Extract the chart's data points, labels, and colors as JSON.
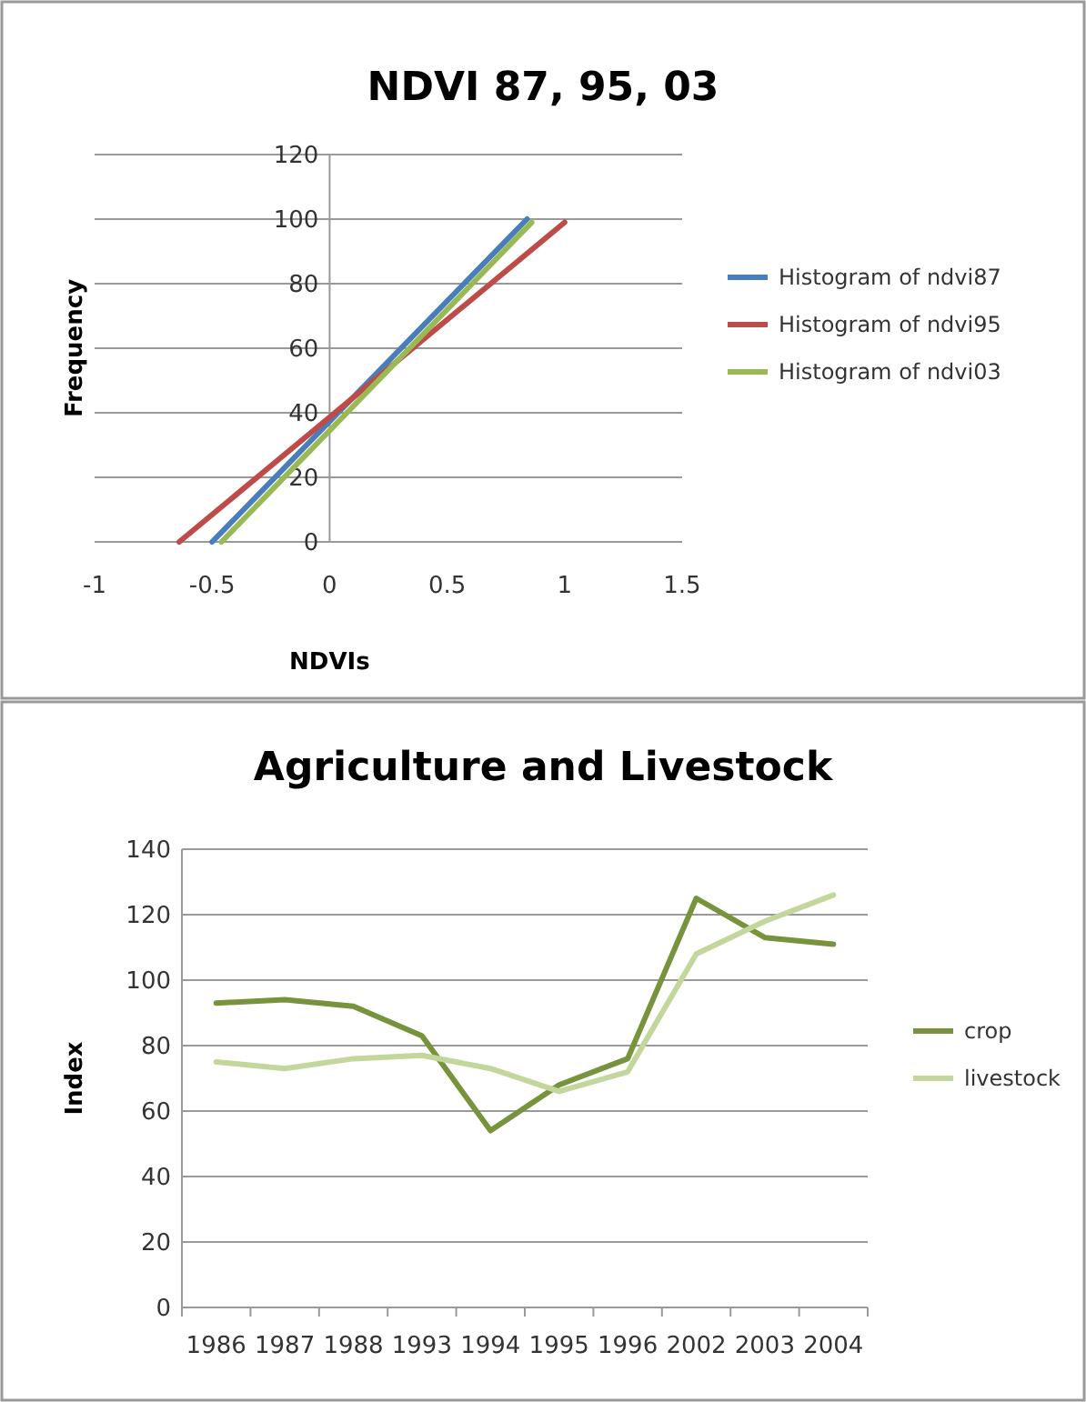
{
  "chart_data": [
    {
      "type": "line",
      "title": "NDVI 87, 95, 03",
      "xlabel": "NDVIs",
      "ylabel": "Frequency",
      "xlim": [
        -1,
        1.5
      ],
      "xticks": [
        -1,
        -0.5,
        0,
        0.5,
        1,
        1.5
      ],
      "ylim": [
        0,
        120
      ],
      "yticks": [
        0,
        20,
        40,
        60,
        80,
        100,
        120
      ],
      "grid": "y",
      "legend": "right",
      "marker": "none",
      "series": [
        {
          "name": "Histogram of ndvi87",
          "color": "#4a7ebb",
          "x": [
            -0.5,
            0.84
          ],
          "values": [
            0,
            100
          ]
        },
        {
          "name": "Histogram of ndvi95",
          "color": "#be4b48",
          "x": [
            -0.64,
            1.0
          ],
          "values": [
            0,
            99
          ]
        },
        {
          "name": "Histogram of ndvi03",
          "color": "#98b954",
          "x": [
            -0.46,
            0.86
          ],
          "values": [
            0,
            99
          ]
        }
      ]
    },
    {
      "type": "line",
      "title": "Agriculture and Livestock",
      "ylabel": "Index",
      "categories": [
        "1986",
        "1987",
        "1988",
        "1993",
        "1994",
        "1995",
        "1996",
        "2002",
        "2003",
        "2004"
      ],
      "ylim": [
        0,
        140
      ],
      "yticks": [
        0,
        20,
        40,
        60,
        80,
        100,
        120,
        140
      ],
      "grid": "y",
      "legend": "right",
      "marker": "none",
      "series": [
        {
          "name": "crop",
          "color": "#77933c",
          "values": [
            93,
            94,
            92,
            83,
            54,
            68,
            76,
            125,
            113,
            111
          ]
        },
        {
          "name": "livestock",
          "color": "#c3d69b",
          "values": [
            75,
            73,
            76,
            77,
            73,
            66,
            72,
            108,
            118,
            126
          ]
        }
      ]
    }
  ]
}
